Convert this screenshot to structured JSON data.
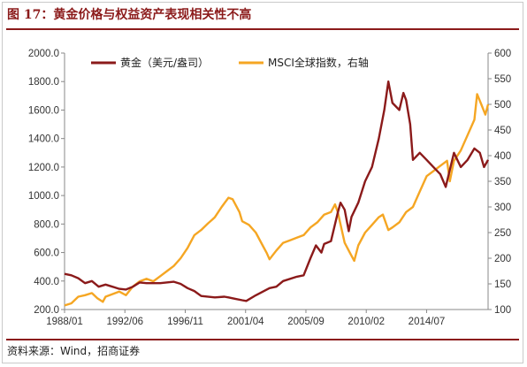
{
  "title": "图 17：黄金价格与权益资产表现相关性不高",
  "source": "资料来源：Wind，招商证券",
  "colors": {
    "gold": "#8b1a1a",
    "msci": "#f5a623",
    "frame": "#c9c9c9",
    "title": "#8b1a1a"
  },
  "chart_data": {
    "type": "line",
    "title": "",
    "xlabel": "",
    "ylabel": "",
    "legend_position": "top-left",
    "grid": false,
    "x_ticks": [
      "1988/01",
      "1992/06",
      "1996/11",
      "2001/04",
      "2005/09",
      "2010/02",
      "2014/07"
    ],
    "x_range": [
      1988.0,
      2019.0
    ],
    "y_left": {
      "ticks": [
        "200.0",
        "400.0",
        "600.0",
        "800.0",
        "1000.0",
        "1200.0",
        "1400.0",
        "1600.0",
        "1800.0",
        "2000.0"
      ],
      "range": [
        200,
        2000
      ]
    },
    "y_right": {
      "ticks": [
        "100",
        "150",
        "200",
        "250",
        "300",
        "350",
        "400",
        "450",
        "500",
        "550",
        "600"
      ],
      "range": [
        100,
        600
      ]
    },
    "series": [
      {
        "name": "黄金（美元/盎司）",
        "axis": "left",
        "color": "#8b1a1a",
        "x": [
          1988.0,
          1988.5,
          1989.0,
          1989.5,
          1990.0,
          1990.5,
          1991.0,
          1991.5,
          1992.0,
          1992.5,
          1993.0,
          1993.5,
          1994.0,
          1995.0,
          1996.0,
          1996.5,
          1997.0,
          1997.5,
          1998.0,
          1999.0,
          1999.7,
          2000.0,
          2000.5,
          2001.0,
          2001.3,
          2002.0,
          2003.0,
          2003.5,
          2004.0,
          2005.0,
          2005.5,
          2006.0,
          2006.4,
          2006.8,
          2007.0,
          2007.5,
          2008.0,
          2008.2,
          2008.5,
          2008.8,
          2009.0,
          2009.5,
          2010.0,
          2010.5,
          2011.0,
          2011.4,
          2011.7,
          2012.0,
          2012.5,
          2012.8,
          2013.0,
          2013.3,
          2013.5,
          2014.0,
          2014.5,
          2015.0,
          2015.5,
          2015.9,
          2016.0,
          2016.5,
          2017.0,
          2017.5,
          2018.0,
          2018.4,
          2018.7,
          2019.0
        ],
        "values": [
          450,
          440,
          420,
          385,
          400,
          360,
          375,
          360,
          345,
          340,
          360,
          390,
          385,
          385,
          395,
          380,
          350,
          330,
          295,
          285,
          290,
          285,
          275,
          265,
          260,
          300,
          350,
          360,
          400,
          430,
          440,
          560,
          650,
          600,
          660,
          680,
          880,
          950,
          900,
          750,
          850,
          950,
          1100,
          1200,
          1400,
          1600,
          1800,
          1650,
          1600,
          1720,
          1670,
          1500,
          1250,
          1300,
          1250,
          1200,
          1150,
          1060,
          1100,
          1300,
          1200,
          1250,
          1330,
          1300,
          1200,
          1250
        ]
      },
      {
        "name": "MSCI全球指数，右轴",
        "axis": "right",
        "color": "#f5a623",
        "x": [
          1988.0,
          1988.5,
          1989.0,
          1989.5,
          1990.0,
          1990.4,
          1990.8,
          1991.0,
          1991.5,
          1992.0,
          1992.5,
          1993.0,
          1993.5,
          1994.0,
          1994.5,
          1995.0,
          1995.5,
          1996.0,
          1996.5,
          1997.0,
          1997.5,
          1998.0,
          1998.5,
          1998.8,
          1999.0,
          1999.5,
          2000.0,
          2000.3,
          2000.8,
          2001.0,
          2001.5,
          2002.0,
          2002.5,
          2002.8,
          2003.0,
          2003.5,
          2004.0,
          2004.5,
          2005.0,
          2005.5,
          2006.0,
          2006.5,
          2007.0,
          2007.5,
          2007.8,
          2008.0,
          2008.5,
          2008.9,
          2009.2,
          2009.5,
          2010.0,
          2010.5,
          2011.0,
          2011.3,
          2011.7,
          2012.0,
          2012.5,
          2013.0,
          2013.5,
          2014.0,
          2014.5,
          2015.0,
          2015.5,
          2016.0,
          2016.2,
          2016.5,
          2017.0,
          2017.5,
          2018.0,
          2018.2,
          2018.5,
          2018.8,
          2019.0
        ],
        "values": [
          108,
          112,
          125,
          128,
          132,
          122,
          115,
          125,
          130,
          135,
          128,
          145,
          155,
          160,
          155,
          165,
          175,
          185,
          200,
          220,
          245,
          255,
          268,
          275,
          280,
          300,
          318,
          315,
          290,
          272,
          265,
          250,
          225,
          210,
          198,
          215,
          230,
          235,
          240,
          245,
          260,
          270,
          285,
          290,
          305,
          290,
          230,
          210,
          195,
          225,
          250,
          265,
          280,
          285,
          255,
          260,
          270,
          290,
          300,
          330,
          360,
          370,
          380,
          390,
          350,
          390,
          410,
          440,
          470,
          520,
          500,
          480,
          500
        ]
      }
    ]
  }
}
